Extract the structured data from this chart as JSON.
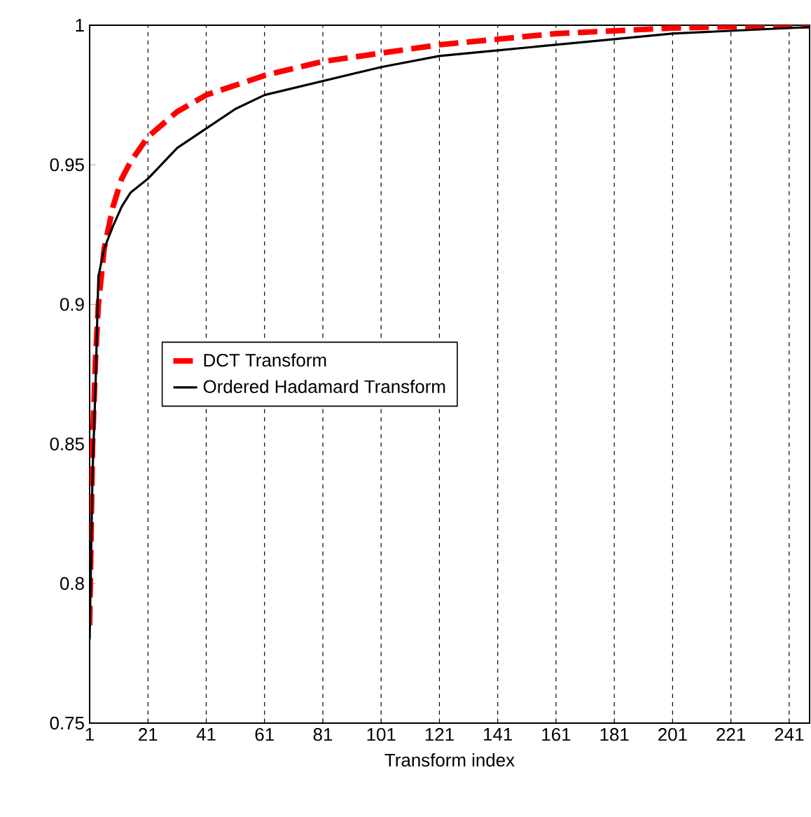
{
  "chart_data": {
    "type": "line",
    "xlabel": "Transform index",
    "xlim": [
      1,
      248
    ],
    "xticks": [
      1,
      21,
      41,
      61,
      81,
      101,
      121,
      141,
      161,
      181,
      201,
      221,
      241
    ],
    "ylim": [
      0.75,
      1
    ],
    "yticks": [
      0.75,
      0.8,
      0.85,
      0.9,
      0.95,
      1
    ],
    "grid": "x",
    "legend": "left",
    "marker": "none",
    "series": [
      {
        "name": "DCT Transform",
        "color": "#ff0000",
        "line_style": "dashed",
        "x": [
          1,
          2,
          3,
          4,
          6,
          9,
          12,
          15,
          21,
          31,
          41,
          61,
          81,
          101,
          121,
          141,
          161,
          181,
          201,
          221,
          241,
          248
        ],
        "values": [
          0.785,
          0.85,
          0.88,
          0.9,
          0.92,
          0.935,
          0.945,
          0.951,
          0.96,
          0.969,
          0.975,
          0.982,
          0.987,
          0.99,
          0.993,
          0.995,
          0.997,
          0.998,
          0.999,
          0.9995,
          0.9997,
          0.9998
        ]
      },
      {
        "name": "Ordered Hadamard Transform",
        "color": "#000000",
        "line_style": "solid",
        "x": [
          1,
          2,
          3,
          4,
          6,
          9,
          12,
          15,
          21,
          31,
          41,
          51,
          61,
          81,
          101,
          121,
          141,
          161,
          181,
          201,
          221,
          241,
          248
        ],
        "values": [
          0.78,
          0.84,
          0.87,
          0.91,
          0.92,
          0.928,
          0.935,
          0.94,
          0.945,
          0.956,
          0.963,
          0.97,
          0.975,
          0.98,
          0.985,
          0.989,
          0.991,
          0.993,
          0.995,
          0.997,
          0.998,
          0.999,
          0.9993
        ]
      }
    ]
  }
}
